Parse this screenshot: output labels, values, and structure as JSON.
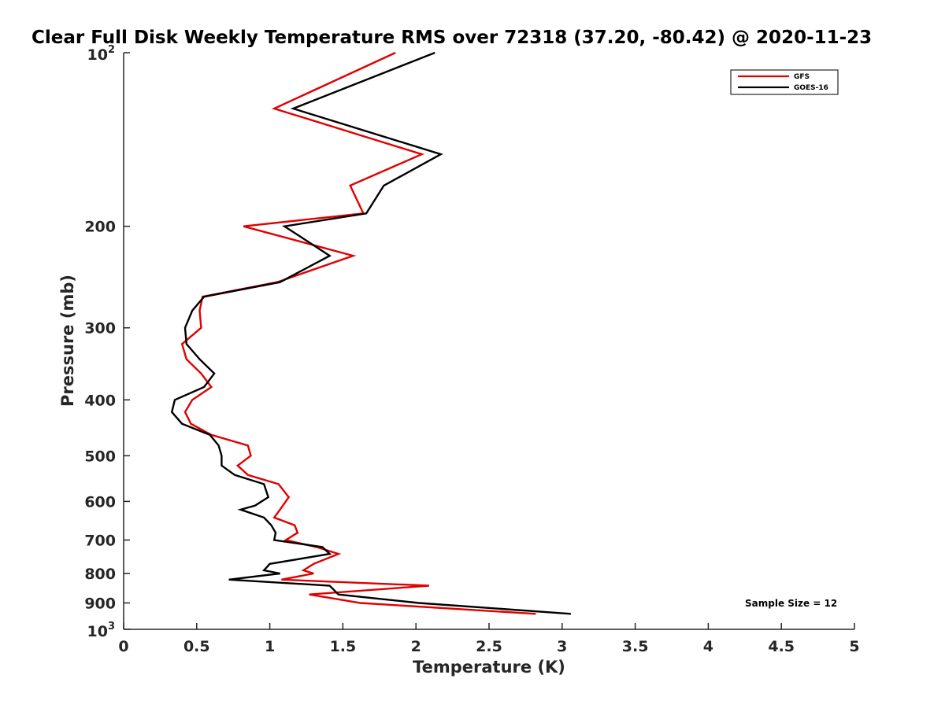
{
  "chart_data": {
    "type": "line",
    "title": "Clear Full Disk Weekly Temperature RMS over 72318 (37.20, -80.42) @ 2020-11-23",
    "xlabel": "Temperature (K)",
    "ylabel": "Pressure (mb)",
    "xlim": [
      0,
      5
    ],
    "ylim": [
      100,
      1000
    ],
    "y_scale": "log",
    "y_reversed": true,
    "grid": false,
    "legend_position": "top-right",
    "x_ticks": [
      "0",
      "0.5",
      "1",
      "1.5",
      "2",
      "2.5",
      "3",
      "3.5",
      "4",
      "4.5",
      "5"
    ],
    "y_ticks": [
      {
        "value": 200,
        "label": "200"
      },
      {
        "value": 300,
        "label": "300"
      },
      {
        "value": 400,
        "label": "400"
      },
      {
        "value": 500,
        "label": "500"
      },
      {
        "value": 600,
        "label": "600"
      },
      {
        "value": 700,
        "label": "700"
      },
      {
        "value": 800,
        "label": "800"
      },
      {
        "value": 900,
        "label": "900"
      }
    ],
    "y_tick_top": {
      "base": "10",
      "exp": "2"
    },
    "y_tick_bottom": {
      "base": "10",
      "exp": "3"
    },
    "series": [
      {
        "name": "GFS",
        "color": "#e00000",
        "points": [
          [
            1.86,
            100
          ],
          [
            1.03,
            125
          ],
          [
            2.04,
            150
          ],
          [
            1.55,
            170
          ],
          [
            1.64,
            190
          ],
          [
            0.82,
            200
          ],
          [
            1.57,
            225
          ],
          [
            1.05,
            250
          ],
          [
            0.54,
            265
          ],
          [
            0.52,
            280
          ],
          [
            0.53,
            300
          ],
          [
            0.4,
            320
          ],
          [
            0.43,
            340
          ],
          [
            0.53,
            360
          ],
          [
            0.6,
            380
          ],
          [
            0.47,
            400
          ],
          [
            0.42,
            420
          ],
          [
            0.46,
            440
          ],
          [
            0.6,
            460
          ],
          [
            0.85,
            480
          ],
          [
            0.87,
            500
          ],
          [
            0.78,
            520
          ],
          [
            0.85,
            540
          ],
          [
            1.06,
            560
          ],
          [
            1.13,
            590
          ],
          [
            1.07,
            620
          ],
          [
            1.03,
            640
          ],
          [
            1.17,
            660
          ],
          [
            1.19,
            680
          ],
          [
            1.11,
            700
          ],
          [
            1.32,
            720
          ],
          [
            1.47,
            740
          ],
          [
            1.3,
            770
          ],
          [
            1.23,
            790
          ],
          [
            1.3,
            800
          ],
          [
            1.08,
            820
          ],
          [
            2.09,
            840
          ],
          [
            1.27,
            870
          ],
          [
            1.62,
            900
          ],
          [
            2.82,
            940
          ]
        ]
      },
      {
        "name": "GOES-16",
        "color": "#000000",
        "points": [
          [
            2.13,
            100
          ],
          [
            1.16,
            125
          ],
          [
            2.17,
            150
          ],
          [
            1.78,
            170
          ],
          [
            1.66,
            190
          ],
          [
            1.1,
            200
          ],
          [
            1.41,
            225
          ],
          [
            1.07,
            250
          ],
          [
            0.55,
            265
          ],
          [
            0.47,
            280
          ],
          [
            0.42,
            300
          ],
          [
            0.43,
            320
          ],
          [
            0.52,
            340
          ],
          [
            0.62,
            360
          ],
          [
            0.55,
            380
          ],
          [
            0.35,
            400
          ],
          [
            0.33,
            420
          ],
          [
            0.4,
            440
          ],
          [
            0.59,
            460
          ],
          [
            0.65,
            480
          ],
          [
            0.67,
            500
          ],
          [
            0.67,
            520
          ],
          [
            0.76,
            540
          ],
          [
            0.96,
            560
          ],
          [
            0.99,
            590
          ],
          [
            0.9,
            610
          ],
          [
            0.8,
            620
          ],
          [
            0.96,
            640
          ],
          [
            1.01,
            660
          ],
          [
            1.04,
            680
          ],
          [
            1.03,
            700
          ],
          [
            1.36,
            720
          ],
          [
            1.41,
            740
          ],
          [
            1.0,
            770
          ],
          [
            0.96,
            790
          ],
          [
            1.07,
            800
          ],
          [
            0.72,
            820
          ],
          [
            1.41,
            840
          ],
          [
            1.47,
            870
          ],
          [
            2.02,
            900
          ],
          [
            3.06,
            940
          ]
        ]
      }
    ],
    "annotations": [
      {
        "text": "Sample Size = 12",
        "position": "bottom-right"
      }
    ]
  }
}
